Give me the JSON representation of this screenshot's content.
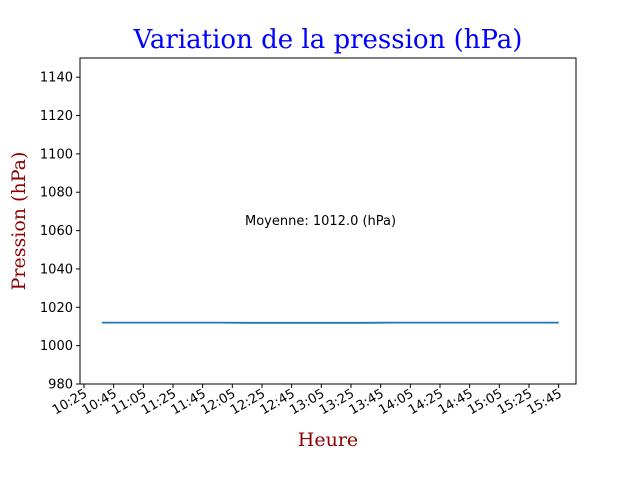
{
  "chart_data": {
    "type": "line",
    "title": "Variation de la pression (hPa)",
    "xlabel": "Heure",
    "ylabel": "Pression (hPa)",
    "annotation": "Moyenne: 1012.0 (hPa)",
    "ylim": [
      980,
      1150
    ],
    "yticks": [
      980,
      1000,
      1020,
      1040,
      1060,
      1080,
      1100,
      1120,
      1140
    ],
    "xlim": [
      "10:25",
      "15:54"
    ],
    "xticks": [
      "10:25",
      "10:45",
      "11:05",
      "11:25",
      "11:45",
      "12:05",
      "12:25",
      "12:45",
      "13:05",
      "13:25",
      "13:45",
      "14:05",
      "14:25",
      "14:45",
      "15:05",
      "15:25",
      "15:45"
    ],
    "grid": false,
    "series": [
      {
        "x": [
          "10:37",
          "10:55",
          "11:15",
          "11:35",
          "11:55",
          "12:15",
          "12:35",
          "12:55",
          "13:15",
          "13:35",
          "13:55",
          "14:05",
          "14:25",
          "14:45",
          "15:05",
          "15:25",
          "15:45"
        ],
        "values": [
          1012.0,
          1012.0,
          1012.0,
          1012.0,
          1012.0,
          1011.9,
          1011.9,
          1011.9,
          1011.9,
          1011.9,
          1012.0,
          1012.0,
          1012.0,
          1012.0,
          1012.0,
          1012.0,
          1012.0
        ]
      }
    ],
    "colors": {
      "title": "#0000ff",
      "axis_label": "#8b0000",
      "line": "#1f77b4"
    }
  }
}
